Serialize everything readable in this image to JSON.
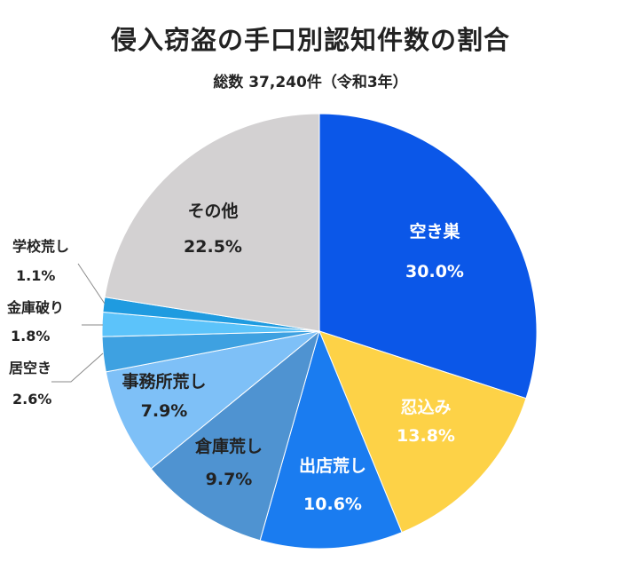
{
  "chart_data": {
    "type": "pie",
    "title": "侵入窃盗の手口別認知件数の割合",
    "subtitle": "総数 37,240件（令和3年）",
    "slices": [
      {
        "label": "空き巣",
        "value": 30.0,
        "value_label": "30.0%",
        "color": "#0b57e8",
        "text_color": "#ffffff"
      },
      {
        "label": "忍込み",
        "value": 13.8,
        "value_label": "13.8%",
        "color": "#fdd247",
        "text_color": "#ffffff"
      },
      {
        "label": "出店荒し",
        "value": 10.6,
        "value_label": "10.6%",
        "color": "#1a7cf0",
        "text_color": "#ffffff"
      },
      {
        "label": "倉庫荒し",
        "value": 9.7,
        "value_label": "9.7%",
        "color": "#4f93d1",
        "text_color": "#222222"
      },
      {
        "label": "事務所荒し",
        "value": 7.9,
        "value_label": "7.9%",
        "color": "#7ec0f7",
        "text_color": "#222222"
      },
      {
        "label": "居空き",
        "value": 2.6,
        "value_label": "2.6%",
        "color": "#3ea1e1",
        "text_color": "#222222"
      },
      {
        "label": "金庫破り",
        "value": 1.8,
        "value_label": "1.8%",
        "color": "#5cc3fa",
        "text_color": "#222222"
      },
      {
        "label": "学校荒し",
        "value": 1.1,
        "value_label": "1.1%",
        "color": "#1f9be0",
        "text_color": "#222222"
      },
      {
        "label": "その他",
        "value": 22.5,
        "value_label": "22.5%",
        "color": "#d3d1d2",
        "text_color": "#222222"
      }
    ]
  }
}
